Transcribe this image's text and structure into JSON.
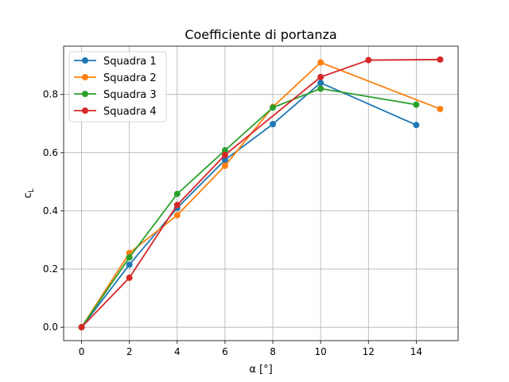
{
  "chart_data": {
    "type": "line",
    "title": "Coefficiente di portanza",
    "xlabel": "α [°]",
    "ylabel": "c",
    "ylabel_subscript": "L",
    "xlim": [
      -0.75,
      15.75
    ],
    "ylim": [
      -0.046,
      0.966
    ],
    "xticks": [
      0,
      2,
      4,
      6,
      8,
      10,
      12,
      14
    ],
    "xtick_labels": [
      "0",
      "2",
      "4",
      "6",
      "8",
      "10",
      "12",
      "14"
    ],
    "yticks": [
      0.0,
      0.2,
      0.4,
      0.6,
      0.8
    ],
    "ytick_labels": [
      "0.0",
      "0.2",
      "0.4",
      "0.6",
      "0.8"
    ],
    "grid": true,
    "legend_position": "top-left",
    "series": [
      {
        "name": "Squadra 1",
        "color": "#1f77b4",
        "x": [
          0,
          2,
          4,
          6,
          8,
          10,
          14
        ],
        "y": [
          0.0,
          0.215,
          0.41,
          0.575,
          0.698,
          0.84,
          0.695
        ]
      },
      {
        "name": "Squadra 2",
        "color": "#ff7f0e",
        "x": [
          0,
          2,
          4,
          6,
          8,
          10,
          15
        ],
        "y": [
          0.0,
          0.255,
          0.385,
          0.555,
          0.757,
          0.91,
          0.75
        ]
      },
      {
        "name": "Squadra 3",
        "color": "#2ca02c",
        "x": [
          0,
          2,
          4,
          6,
          8,
          10,
          14
        ],
        "y": [
          0.0,
          0.24,
          0.458,
          0.608,
          0.755,
          0.82,
          0.765
        ]
      },
      {
        "name": "Squadra 4",
        "color": "#d62728",
        "x": [
          0,
          2,
          4,
          6,
          10,
          12,
          15
        ],
        "y": [
          0.0,
          0.17,
          0.42,
          0.592,
          0.86,
          0.918,
          0.92
        ]
      }
    ]
  }
}
